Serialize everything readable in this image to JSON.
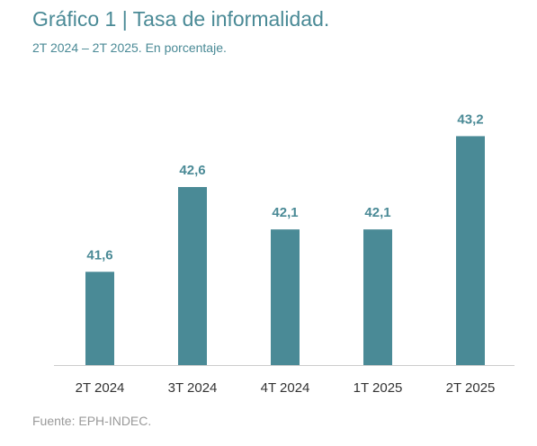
{
  "header": {
    "title": "Gráfico 1 | Tasa de informalidad.",
    "subtitle": "2T 2024 – 2T 2025. En porcentaje."
  },
  "footer": {
    "source": "Fuente: EPH-INDEC."
  },
  "colors": {
    "bar": "#4a8a96",
    "label": "#4a8a96",
    "baseline": "#cccccc"
  },
  "chart_data": {
    "type": "bar",
    "categories": [
      "2T 2024",
      "3T 2024",
      "4T 2024",
      "1T 2025",
      "2T 2025"
    ],
    "values": [
      41.6,
      42.6,
      42.1,
      42.1,
      43.2
    ],
    "value_labels": [
      "41,6",
      "42,6",
      "42,1",
      "42,1",
      "43,2"
    ],
    "title": "Gráfico 1 | Tasa de informalidad.",
    "subtitle": "2T 2024 – 2T 2025. En porcentaje.",
    "xlabel": "",
    "ylabel": "",
    "ylim": [
      40.5,
      43.3
    ],
    "grid": false,
    "legend": "none"
  }
}
